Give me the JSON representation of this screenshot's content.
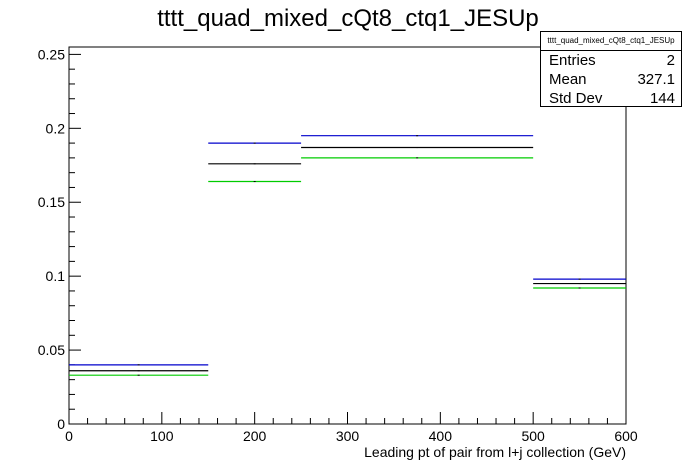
{
  "chart_data": {
    "type": "step",
    "title": "tttt_quad_mixed_cQt8_ctq1_JESUp",
    "xlabel": "Leading pt of pair from l+j collection (GeV)",
    "ylabel": "",
    "xlim": [
      0,
      600
    ],
    "ylim": [
      0,
      0.255
    ],
    "x_ticks": [
      0,
      100,
      200,
      300,
      400,
      500,
      600
    ],
    "x_tick_labels": [
      "0",
      "100",
      "200",
      "300",
      "400",
      "500",
      "600"
    ],
    "y_ticks": [
      0,
      0.05,
      0.1,
      0.15,
      0.2,
      0.25
    ],
    "y_tick_labels": [
      "0",
      "0.05",
      "0.1",
      "0.15",
      "0.2",
      "0.25"
    ],
    "bin_edges": [
      0,
      150,
      250,
      500,
      600
    ],
    "series": [
      {
        "color": "#0000cc",
        "values": [
          0.04,
          0.19,
          0.195,
          0.098
        ]
      },
      {
        "color": "#000000",
        "values": [
          0.036,
          0.176,
          0.187,
          0.095
        ]
      },
      {
        "color": "#00cc00",
        "values": [
          0.033,
          0.164,
          0.18,
          0.092
        ]
      }
    ],
    "grid": false,
    "legend": "none"
  },
  "stats_box": {
    "title": "tttt_quad_mixed_cQt8_ctq1_JESUp",
    "rows": [
      {
        "label": "Entries",
        "value": "2"
      },
      {
        "label": "Mean",
        "value": "327.1"
      },
      {
        "label": "Std Dev",
        "value": "144"
      }
    ]
  }
}
